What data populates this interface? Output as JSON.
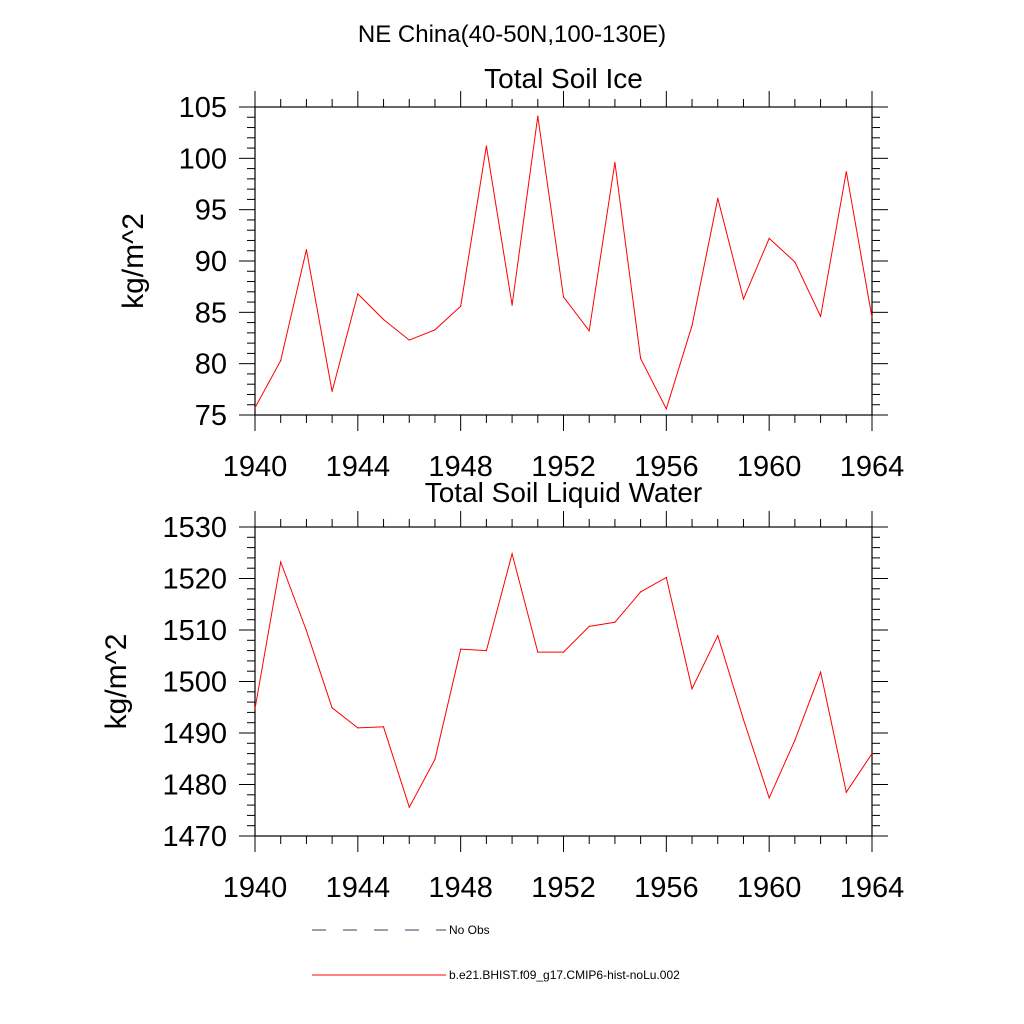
{
  "figure_title": "NE China(40-50N,100-130E)",
  "legend": [
    {
      "label": "No Obs",
      "color": "#34405e",
      "style": "dashed"
    },
    {
      "label": "b.e21.BHIST.f09_g17.CMIP6-hist-noLu.002",
      "color": "#ff0000",
      "style": "solid"
    }
  ],
  "chart_data": [
    {
      "type": "line",
      "title": "Total Soil Ice",
      "xlabel": "",
      "ylabel": "kg/m^2",
      "xlim": [
        1940,
        1964
      ],
      "ylim": [
        75,
        105
      ],
      "xticks": [
        1940,
        1944,
        1948,
        1952,
        1956,
        1960,
        1964
      ],
      "yticks": [
        75,
        80,
        85,
        90,
        95,
        100,
        105
      ],
      "x": [
        1940,
        1941,
        1942,
        1943,
        1944,
        1945,
        1946,
        1947,
        1948,
        1949,
        1950,
        1951,
        1952,
        1953,
        1954,
        1955,
        1956,
        1957,
        1958,
        1959,
        1960,
        1961,
        1962,
        1963,
        1964
      ],
      "series": [
        {
          "name": "b.e21.BHIST.f09_g17.CMIP6-hist-noLu.002",
          "color": "#ff0000",
          "values": [
            75.7,
            80.3,
            91.1,
            77.3,
            86.8,
            84.3,
            82.3,
            83.3,
            85.6,
            101.2,
            85.7,
            104.1,
            86.5,
            83.2,
            99.6,
            80.5,
            75.6,
            83.7,
            96.1,
            86.3,
            92.2,
            89.9,
            84.6,
            98.7,
            84.5
          ]
        }
      ],
      "grid": false
    },
    {
      "type": "line",
      "title": "Total Soil Liquid Water",
      "xlabel": "",
      "ylabel": "kg/m^2",
      "xlim": [
        1940,
        1964
      ],
      "ylim": [
        1470,
        1530
      ],
      "xticks": [
        1940,
        1944,
        1948,
        1952,
        1956,
        1960,
        1964
      ],
      "yticks": [
        1470,
        1480,
        1490,
        1500,
        1510,
        1520,
        1530
      ],
      "x": [
        1940,
        1941,
        1942,
        1943,
        1944,
        1945,
        1946,
        1947,
        1948,
        1949,
        1950,
        1951,
        1952,
        1953,
        1954,
        1955,
        1956,
        1957,
        1958,
        1959,
        1960,
        1961,
        1962,
        1963,
        1964
      ],
      "series": [
        {
          "name": "b.e21.BHIST.f09_g17.CMIP6-hist-noLu.002",
          "color": "#ff0000",
          "values": [
            1494.7,
            1523.2,
            1509.9,
            1494.9,
            1491.0,
            1491.2,
            1475.6,
            1484.9,
            1506.3,
            1506.0,
            1524.8,
            1505.7,
            1505.7,
            1510.7,
            1511.5,
            1517.4,
            1520.2,
            1498.6,
            1508.9,
            1492.6,
            1477.4,
            1488.6,
            1501.8,
            1478.5,
            1486.0
          ]
        }
      ],
      "grid": false
    }
  ]
}
